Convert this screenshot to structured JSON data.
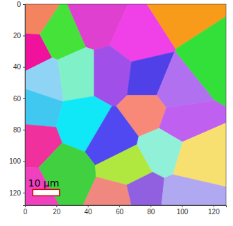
{
  "chart_data": {
    "type": "grain_map",
    "xlim": [
      0,
      128
    ],
    "ylim": [
      128,
      0
    ],
    "xticks": [
      0,
      20,
      40,
      60,
      80,
      100,
      120
    ],
    "yticks": [
      0,
      20,
      40,
      60,
      80,
      100,
      120
    ],
    "grains": {
      "x": [
        4,
        3,
        22,
        45,
        72,
        100,
        120,
        12,
        33,
        55,
        78,
        95,
        6,
        38,
        78,
        98,
        108,
        55,
        4,
        25,
        65,
        88,
        3,
        60,
        73,
        102
      ],
      "y": [
        8,
        30,
        20,
        10,
        22,
        4,
        35,
        48,
        45,
        45,
        48,
        55,
        66,
        75,
        68,
        75,
        98,
        85,
        88,
        108,
        105,
        92,
        120,
        124,
        121,
        124
      ],
      "colors": [
        "#f4845f",
        "#f0119d",
        "#45e33a",
        "#e040d0",
        "#f040e8",
        "#f89b1b",
        "#33e03a",
        "#8fd3f5",
        "#80f0c8",
        "#a050e8",
        "#5040e8",
        "#b070f0",
        "#40c8f0",
        "#10e8f8",
        "#f88878",
        "#c060f0",
        "#f8e070",
        "#5048f0",
        "#f0309c",
        "#40d040",
        "#b0e840",
        "#90f0d8",
        "#f040c0",
        "#f08880",
        "#9060e0",
        "#b0a8f0"
      ]
    },
    "scale_bar": {
      "label": "10 μm",
      "length": 17
    }
  }
}
